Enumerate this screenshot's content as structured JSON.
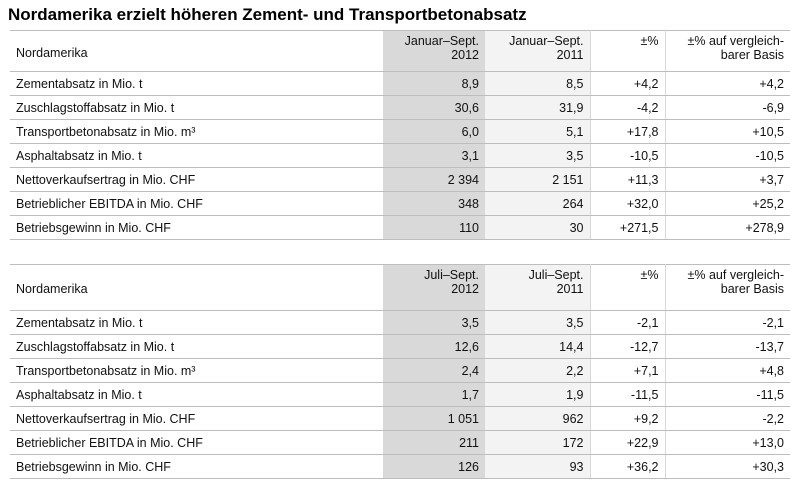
{
  "title": "Nordamerika erzielt höheren Zement- und Transportbetonabsatz",
  "tables": [
    {
      "header": {
        "label": "Nordamerika",
        "columns": [
          [
            "Januar–Sept.",
            "2012"
          ],
          [
            "Januar–Sept.",
            "2011"
          ],
          [
            "±%"
          ],
          [
            "±% auf vergleich-",
            "barer Basis"
          ]
        ]
      },
      "rows": [
        [
          "Zementabsatz in Mio. t",
          "8,9",
          "8,5",
          "+4,2",
          "+4,2"
        ],
        [
          "Zuschlagstoffabsatz in Mio. t",
          "30,6",
          "31,9",
          "-4,2",
          "-6,9"
        ],
        [
          "Transportbetonabsatz in Mio. m³",
          "6,0",
          "5,1",
          "+17,8",
          "+10,5"
        ],
        [
          "Asphaltabsatz in Mio. t",
          "3,1",
          "3,5",
          "-10,5",
          "-10,5"
        ],
        [
          "Nettoverkaufsertrag in Mio. CHF",
          "2 394",
          "2 151",
          "+11,3",
          "+3,7"
        ],
        [
          "Betrieblicher EBITDA in Mio. CHF",
          "348",
          "264",
          "+32,0",
          "+25,2"
        ],
        [
          "Betriebsgewinn in Mio. CHF",
          "110",
          "30",
          "+271,5",
          "+278,9"
        ]
      ]
    },
    {
      "header": {
        "label": "Nordamerika",
        "columns": [
          [
            "Juli–Sept.",
            "2012"
          ],
          [
            "Juli–Sept.",
            "2011"
          ],
          [
            "±%"
          ],
          [
            "±% auf vergleich-",
            "barer Basis"
          ]
        ]
      },
      "rows": [
        [
          "Zementabsatz in Mio. t",
          "3,5",
          "3,5",
          "-2,1",
          "-2,1"
        ],
        [
          "Zuschlagstoffabsatz in Mio. t",
          "12,6",
          "14,4",
          "-12,7",
          "-13,7"
        ],
        [
          "Transportbetonabsatz in Mio. m³",
          "2,4",
          "2,2",
          "+7,1",
          "+4,8"
        ],
        [
          "Asphaltabsatz in Mio. t",
          "1,7",
          "1,9",
          "-11,5",
          "-11,5"
        ],
        [
          "Nettoverkaufsertrag in Mio. CHF",
          "1 051",
          "962",
          "+9,2",
          "-2,2"
        ],
        [
          "Betrieblicher EBITDA in Mio. CHF",
          "211",
          "172",
          "+22,9",
          "+13,0"
        ],
        [
          "Betriebsgewinn in Mio. CHF",
          "126",
          "93",
          "+36,2",
          "+30,3"
        ]
      ]
    }
  ]
}
